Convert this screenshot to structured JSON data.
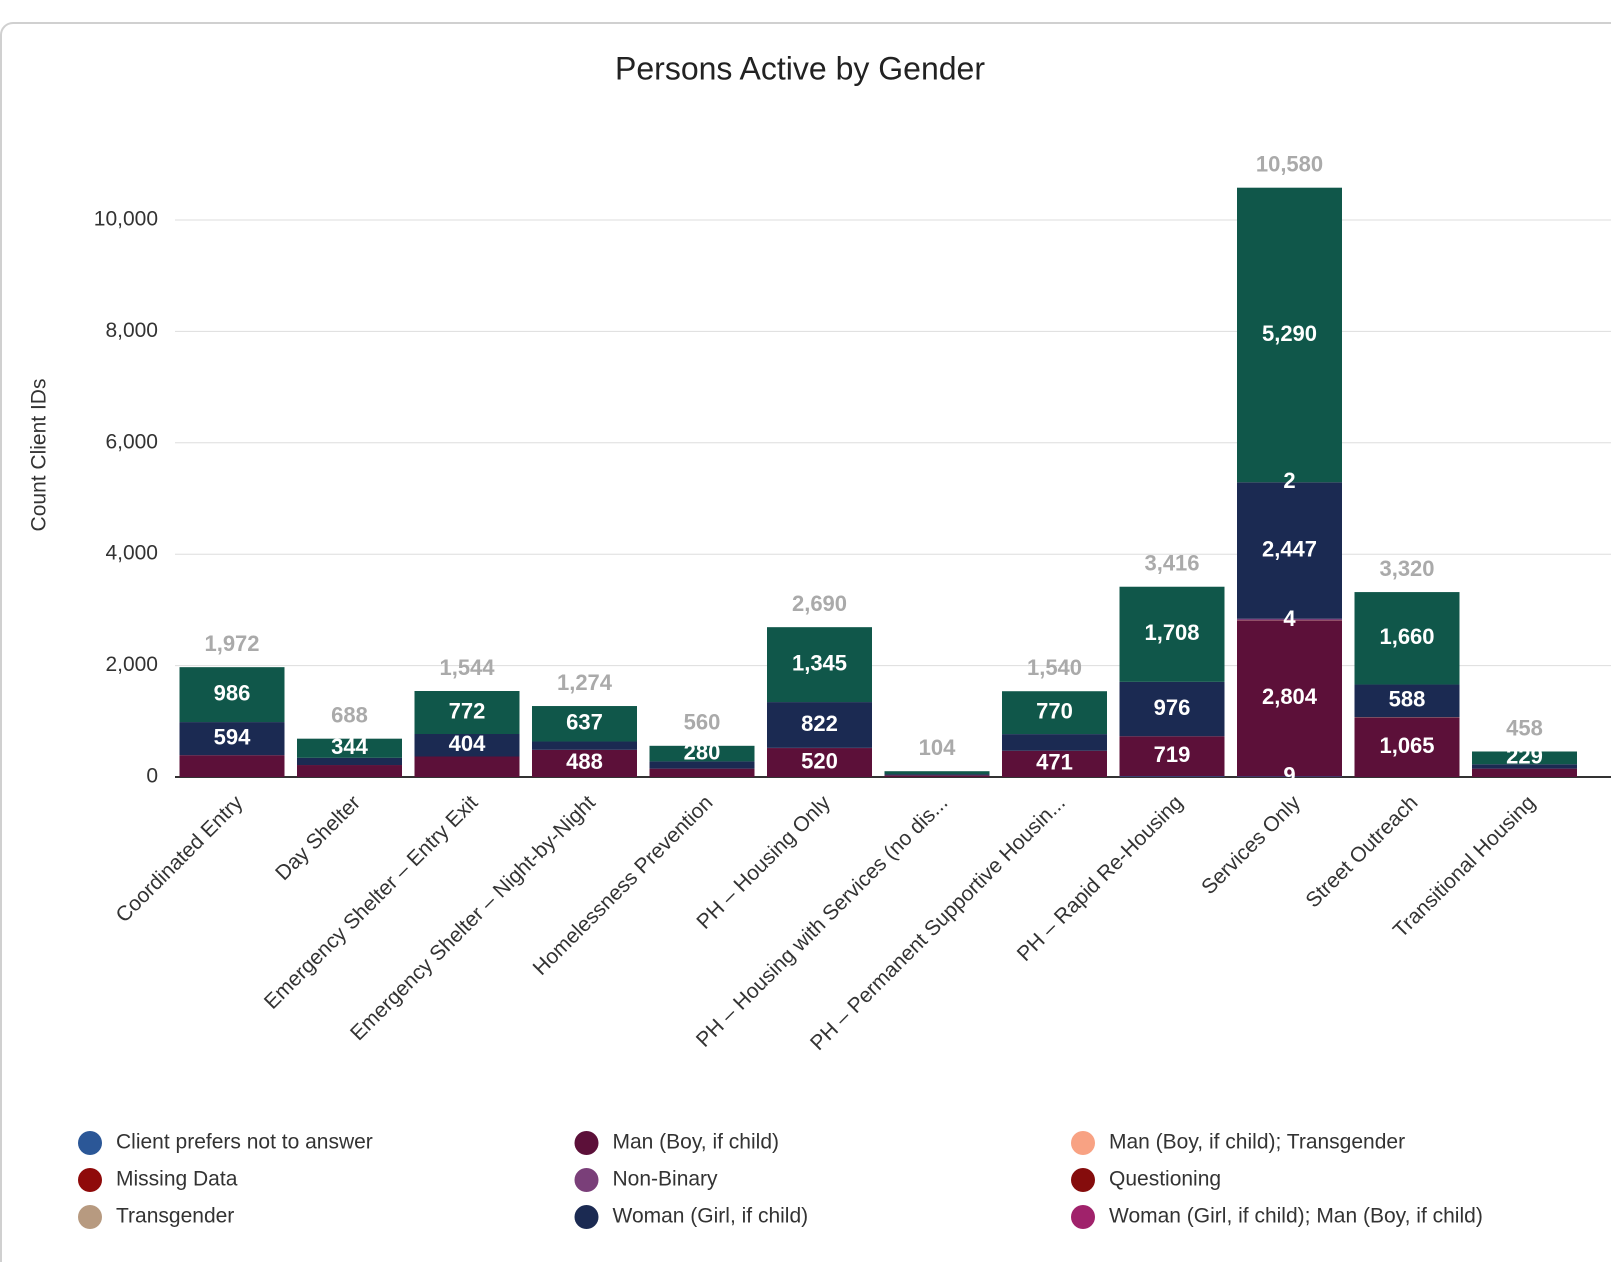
{
  "chart_data": {
    "type": "stacked_bar",
    "title": "Persons Active by Gender",
    "y_label": "Count Client IDs",
    "categories": [
      "Coordinated Entry",
      "Day Shelter",
      "Emergency Shelter – Entry Exit",
      "Emergency Shelter – Night-by-Night",
      "Homelessness Prevention",
      "PH – Housing Only",
      "PH – Housing with Services (no dis...",
      "PH – Permanent Supportive Housin...",
      "PH – Rapid Re-Housing",
      "Services Only",
      "Street Outreach",
      "Transitional Housing"
    ],
    "series": [
      {
        "name": "Client prefers not to answer",
        "color": "#2b5797",
        "values": [
          0,
          0,
          0,
          0,
          0,
          0,
          0,
          0,
          13,
          9,
          0,
          0
        ],
        "value_labels": [
          null,
          null,
          null,
          null,
          null,
          null,
          null,
          null,
          null,
          "9",
          null,
          null
        ]
      },
      {
        "name": "Man (Boy, if child)",
        "color": "#5c1039",
        "values": [
          392,
          215,
          368,
          488,
          150,
          520,
          30,
          471,
          719,
          2804,
          1065,
          150
        ],
        "value_labels": [
          null,
          null,
          null,
          "488",
          null,
          "520",
          null,
          "471",
          "719",
          "2,804",
          "1,065",
          null
        ]
      },
      {
        "name": "Man (Boy, if child); Transgender",
        "color": "#f8a283",
        "values": [
          0,
          0,
          0,
          0,
          0,
          0,
          0,
          0,
          0,
          4,
          0,
          0
        ],
        "value_labels": [
          null,
          null,
          null,
          null,
          null,
          null,
          null,
          null,
          null,
          "4",
          null,
          null
        ]
      },
      {
        "name": "Missing Data",
        "color": "#8f0a0a",
        "values": [
          0,
          0,
          0,
          0,
          0,
          0,
          0,
          0,
          0,
          0,
          7,
          0
        ],
        "value_labels": [
          null,
          null,
          null,
          null,
          null,
          null,
          null,
          null,
          null,
          null,
          null,
          null
        ]
      },
      {
        "name": "Non-Binary",
        "color": "#7a3f79",
        "values": [
          0,
          0,
          0,
          0,
          0,
          3,
          0,
          0,
          0,
          24,
          0,
          0
        ],
        "value_labels": [
          null,
          null,
          null,
          null,
          null,
          null,
          null,
          null,
          null,
          null,
          null,
          null
        ]
      },
      {
        "name": "Questioning",
        "color": "#850c0c",
        "values": [
          0,
          0,
          0,
          0,
          0,
          0,
          0,
          0,
          0,
          0,
          0,
          0
        ],
        "value_labels": [
          null,
          null,
          null,
          null,
          null,
          null,
          null,
          null,
          null,
          null,
          null,
          null
        ]
      },
      {
        "name": "Transgender",
        "color": "#b79a80",
        "values": [
          0,
          0,
          0,
          0,
          0,
          0,
          0,
          0,
          0,
          0,
          0,
          0
        ],
        "value_labels": [
          null,
          null,
          null,
          null,
          null,
          null,
          null,
          null,
          null,
          null,
          null,
          null
        ]
      },
      {
        "name": "Woman (Girl, if child)",
        "color": "#1b2a52",
        "values": [
          594,
          129,
          404,
          149,
          130,
          822,
          22,
          299,
          976,
          2447,
          588,
          79
        ],
        "value_labels": [
          "594",
          null,
          "404",
          null,
          null,
          "822",
          null,
          null,
          "976",
          "2,447",
          "588",
          null
        ]
      },
      {
        "name": "Woman (Girl, if child); Man (Boy, if child)",
        "color": "#a0226b",
        "values": [
          0,
          0,
          0,
          0,
          0,
          0,
          0,
          0,
          0,
          2,
          0,
          0
        ],
        "value_labels": [
          null,
          null,
          null,
          null,
          null,
          null,
          null,
          null,
          null,
          "2",
          null,
          null
        ]
      },
      {
        "color": "#10574a",
        "values": [
          986,
          344,
          772,
          637,
          280,
          1345,
          52,
          770,
          1708,
          5290,
          1660,
          229
        ],
        "value_labels": [
          "986",
          "344",
          "772",
          "637",
          "280",
          "1,345",
          null,
          "770",
          "1,708",
          "5,290",
          "1,660",
          "229"
        ]
      }
    ],
    "totals": [
      1972,
      688,
      1544,
      1274,
      560,
      2690,
      104,
      1540,
      3416,
      10580,
      3320,
      458
    ],
    "total_labels": [
      "1,972",
      "688",
      "1,544",
      "1,274",
      "560",
      "2,690",
      "104",
      "1,540",
      "3,416",
      "10,580",
      "3,320",
      "458"
    ],
    "ylim": [
      0,
      12000
    ],
    "yticks": [
      0,
      {
        "value": 2000,
        "label": "2,000"
      },
      {
        "value": 4000,
        "label": "4,000"
      },
      {
        "value": 6000,
        "label": "6,000"
      },
      {
        "value": 8000,
        "label": "8,000"
      },
      {
        "value": 10000,
        "label": "10,000"
      }
    ],
    "grid": true
  }
}
